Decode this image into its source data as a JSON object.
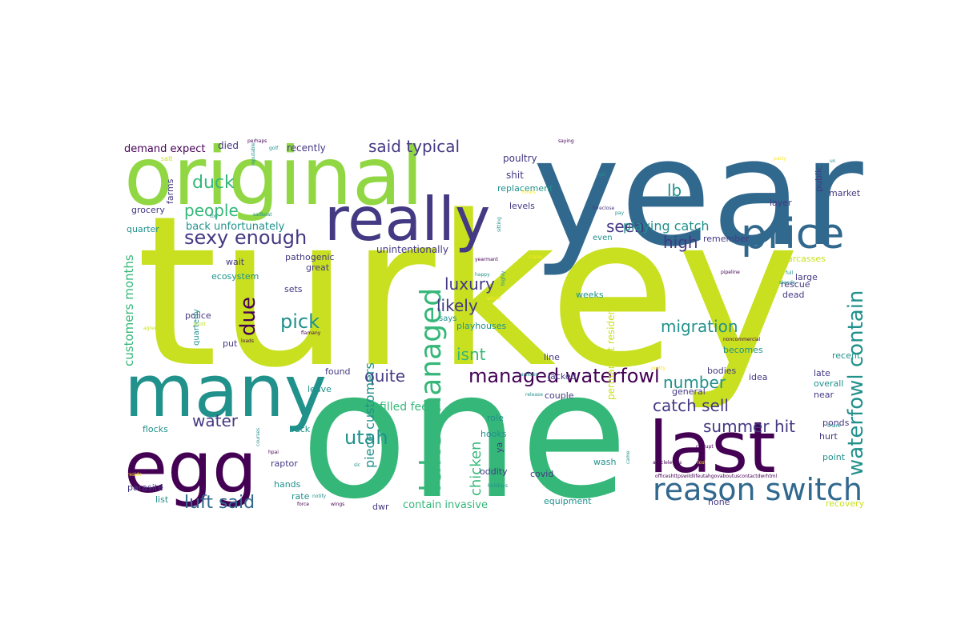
{
  "wordcloud": {
    "colors": {
      "purple": "#440154",
      "indigo": "#443983",
      "blue": "#31688e",
      "teal": "#21918c",
      "green": "#35b779",
      "lime": "#90d743",
      "yellow": "#c8e020",
      "yellow_light": "#fde725"
    },
    "words": [
      {
        "text": "turkey",
        "color": "yellow",
        "weight": 1.0
      },
      {
        "text": "one",
        "color": "green",
        "weight": 0.88
      },
      {
        "text": "year",
        "color": "blue",
        "weight": 0.76
      },
      {
        "text": "original",
        "color": "lime",
        "weight": 0.52
      },
      {
        "text": "many",
        "color": "teal",
        "weight": 0.5
      },
      {
        "text": "egg",
        "color": "purple",
        "weight": 0.48
      },
      {
        "text": "last",
        "color": "purple",
        "weight": 0.46
      },
      {
        "text": "really",
        "color": "indigo",
        "weight": 0.4
      },
      {
        "text": "price",
        "color": "blue",
        "weight": 0.3
      },
      {
        "text": "reason switch",
        "color": "blue",
        "weight": 0.26
      },
      {
        "text": "lake managed",
        "color": "green",
        "weight": 0.22
      },
      {
        "text": "managed waterfowl",
        "color": "purple",
        "weight": 0.2
      },
      {
        "text": "waterfowl contain",
        "color": "teal",
        "weight": 0.2
      },
      {
        "text": "sexy enough",
        "color": "indigo",
        "weight": 0.19
      },
      {
        "text": "duck",
        "color": "green",
        "weight": 0.18
      },
      {
        "text": "due",
        "color": "purple",
        "weight": 0.18
      },
      {
        "text": "said typical",
        "color": "indigo",
        "weight": 0.17
      },
      {
        "text": "luft said",
        "color": "blue",
        "weight": 0.17
      },
      {
        "text": "migration",
        "color": "teal",
        "weight": 0.16
      },
      {
        "text": "utah",
        "color": "teal",
        "weight": 0.16
      },
      {
        "text": "pick",
        "color": "teal",
        "weight": 0.16
      },
      {
        "text": "people",
        "color": "green",
        "weight": 0.15
      },
      {
        "text": "luxury",
        "color": "indigo",
        "weight": 0.15
      },
      {
        "text": "likely",
        "color": "indigo",
        "weight": 0.15
      },
      {
        "text": "isnt",
        "color": "green",
        "weight": 0.15
      },
      {
        "text": "quite",
        "color": "indigo",
        "weight": 0.15
      },
      {
        "text": "number",
        "color": "teal",
        "weight": 0.15
      },
      {
        "text": "catch sell",
        "color": "indigo",
        "weight": 0.15
      },
      {
        "text": "summer hit",
        "color": "indigo",
        "weight": 0.15
      },
      {
        "text": "water",
        "color": "indigo",
        "weight": 0.15
      },
      {
        "text": "seen",
        "color": "indigo",
        "weight": 0.14
      },
      {
        "text": "high",
        "color": "indigo",
        "weight": 0.14
      },
      {
        "text": "lb",
        "color": "teal",
        "weight": 0.14
      },
      {
        "text": "playing catch",
        "color": "teal",
        "weight": 0.13
      },
      {
        "text": "piece customers",
        "color": "teal",
        "weight": 0.13
      },
      {
        "text": "chicken",
        "color": "green",
        "weight": 0.13
      },
      {
        "text": "customers months",
        "color": "green",
        "weight": 0.12
      },
      {
        "text": "refilled feel",
        "color": "green",
        "weight": 0.11
      },
      {
        "text": "back unfortunately",
        "color": "teal",
        "weight": 0.11
      },
      {
        "text": "demand expect",
        "color": "purple",
        "weight": 0.1
      },
      {
        "text": "contain invasive",
        "color": "green",
        "weight": 0.1
      },
      {
        "text": "permanent resident",
        "color": "yellow",
        "weight": 0.09
      },
      {
        "text": "unintentionally",
        "color": "indigo",
        "weight": 0.09
      },
      {
        "text": "recently",
        "color": "indigo",
        "weight": 0.09
      },
      {
        "text": "died",
        "color": "indigo",
        "weight": 0.09
      },
      {
        "text": "poultry",
        "color": "indigo",
        "weight": 0.09
      },
      {
        "text": "shit",
        "color": "indigo",
        "weight": 0.09
      },
      {
        "text": "replacement",
        "color": "teal",
        "weight": 0.09
      },
      {
        "text": "levels",
        "color": "indigo",
        "weight": 0.08
      },
      {
        "text": "grocery",
        "color": "indigo",
        "weight": 0.08
      },
      {
        "text": "farms",
        "color": "indigo",
        "weight": 0.08
      },
      {
        "text": "quarter",
        "color": "teal",
        "weight": 0.08
      },
      {
        "text": "wait",
        "color": "indigo",
        "weight": 0.08
      },
      {
        "text": "pathogenic",
        "color": "indigo",
        "weight": 0.08
      },
      {
        "text": "great",
        "color": "indigo",
        "weight": 0.08
      },
      {
        "text": "ecosystem",
        "color": "teal",
        "weight": 0.08
      },
      {
        "text": "sets",
        "color": "indigo",
        "weight": 0.08
      },
      {
        "text": "police",
        "color": "indigo",
        "weight": 0.08
      },
      {
        "text": "quarterly",
        "color": "teal",
        "weight": 0.08
      },
      {
        "text": "put",
        "color": "indigo",
        "weight": 0.08
      },
      {
        "text": "found",
        "color": "indigo",
        "weight": 0.08
      },
      {
        "text": "leave",
        "color": "teal",
        "weight": 0.08
      },
      {
        "text": "line",
        "color": "indigo",
        "weight": 0.08
      },
      {
        "text": "jacked",
        "color": "indigo",
        "weight": 0.08
      },
      {
        "text": "couple",
        "color": "indigo",
        "weight": 0.08
      },
      {
        "text": "role",
        "color": "teal",
        "weight": 0.08
      },
      {
        "text": "hooks",
        "color": "teal",
        "weight": 0.08
      },
      {
        "text": "oddity",
        "color": "indigo",
        "weight": 0.08
      },
      {
        "text": "covid",
        "color": "indigo",
        "weight": 0.08
      },
      {
        "text": "ya",
        "color": "indigo",
        "weight": 0.08
      },
      {
        "text": "wash",
        "color": "teal",
        "weight": 0.08
      },
      {
        "text": "equipment",
        "color": "teal",
        "weight": 0.08
      },
      {
        "text": "dwr",
        "color": "indigo",
        "weight": 0.08
      },
      {
        "text": "flocks",
        "color": "teal",
        "weight": 0.08
      },
      {
        "text": "back",
        "color": "teal",
        "weight": 0.08
      },
      {
        "text": "raptor",
        "color": "indigo",
        "weight": 0.08
      },
      {
        "text": "parasite",
        "color": "indigo",
        "weight": 0.08
      },
      {
        "text": "hands",
        "color": "teal",
        "weight": 0.08
      },
      {
        "text": "list",
        "color": "teal",
        "weight": 0.08
      },
      {
        "text": "rate",
        "color": "teal",
        "weight": 0.08
      },
      {
        "text": "says",
        "color": "teal",
        "weight": 0.07
      },
      {
        "text": "playhouses",
        "color": "teal",
        "weight": 0.08
      },
      {
        "text": "weeks",
        "color": "teal",
        "weight": 0.08
      },
      {
        "text": "even",
        "color": "teal",
        "weight": 0.07
      },
      {
        "text": "layer",
        "color": "indigo",
        "weight": 0.08
      },
      {
        "text": "public",
        "color": "indigo",
        "weight": 0.07
      },
      {
        "text": "market",
        "color": "indigo",
        "weight": 0.08
      },
      {
        "text": "remember",
        "color": "indigo",
        "weight": 0.08
      },
      {
        "text": "carcasses",
        "color": "yellow",
        "weight": 0.08
      },
      {
        "text": "large",
        "color": "indigo",
        "weight": 0.08
      },
      {
        "text": "rescue",
        "color": "indigo",
        "weight": 0.08
      },
      {
        "text": "dead",
        "color": "indigo",
        "weight": 0.08
      },
      {
        "text": "becomes",
        "color": "teal",
        "weight": 0.08
      },
      {
        "text": "recent",
        "color": "teal",
        "weight": 0.08
      },
      {
        "text": "bodies",
        "color": "indigo",
        "weight": 0.08
      },
      {
        "text": "idea",
        "color": "indigo",
        "weight": 0.08
      },
      {
        "text": "late",
        "color": "indigo",
        "weight": 0.08
      },
      {
        "text": "overall",
        "color": "teal",
        "weight": 0.08
      },
      {
        "text": "general",
        "color": "indigo",
        "weight": 0.08
      },
      {
        "text": "near",
        "color": "indigo",
        "weight": 0.08
      },
      {
        "text": "ponds",
        "color": "indigo",
        "weight": 0.08
      },
      {
        "text": "hurt",
        "color": "indigo",
        "weight": 0.08
      },
      {
        "text": "point",
        "color": "teal",
        "weight": 0.08
      },
      {
        "text": "none",
        "color": "indigo",
        "weight": 0.07
      },
      {
        "text": "recovery",
        "color": "yellow",
        "weight": 0.08
      },
      {
        "text": "perhaps",
        "color": "purple",
        "weight": 0.04
      },
      {
        "text": "golf",
        "color": "teal",
        "weight": 0.04
      },
      {
        "text": "reputable",
        "color": "teal",
        "weight": 0.04
      },
      {
        "text": "saying",
        "color": "purple",
        "weight": 0.04
      },
      {
        "text": "gsl",
        "color": "teal",
        "weight": 0.04
      },
      {
        "text": "party",
        "color": "yellow_light",
        "weight": 0.04
      },
      {
        "text": "un",
        "color": "teal",
        "weight": 0.04
      },
      {
        "text": "salt",
        "color": "yellow",
        "weight": 0.05
      },
      {
        "text": "sailboat",
        "color": "teal",
        "weight": 0.04
      },
      {
        "text": "ton",
        "color": "teal",
        "weight": 0.04
      },
      {
        "text": "hours",
        "color": "yellow_light",
        "weight": 0.04
      },
      {
        "text": "foreclose",
        "color": "indigo",
        "weight": 0.04
      },
      {
        "text": "pay",
        "color": "teal",
        "weight": 0.04
      },
      {
        "text": "sitting",
        "color": "teal",
        "weight": 0.04
      },
      {
        "text": "yearmant",
        "color": "purple",
        "weight": 0.04
      },
      {
        "text": "highly",
        "color": "teal",
        "weight": 0.04
      },
      {
        "text": "happy",
        "color": "teal",
        "weight": 0.04
      },
      {
        "text": "pipeline",
        "color": "purple",
        "weight": 0.04
      },
      {
        "text": "full",
        "color": "teal",
        "weight": 0.04
      },
      {
        "text": "stands",
        "color": "teal",
        "weight": 0.04
      },
      {
        "text": "flamany",
        "color": "purple",
        "weight": 0.04
      },
      {
        "text": "loads",
        "color": "purple",
        "weight": 0.04
      },
      {
        "text": "agree",
        "color": "yellow",
        "weight": 0.04
      },
      {
        "text": "scott",
        "color": "yellow",
        "weight": 0.04
      },
      {
        "text": "whole",
        "color": "yellow_light",
        "weight": 0.04
      },
      {
        "text": "noncommercial",
        "color": "purple",
        "weight": 0.04
      },
      {
        "text": "articles",
        "color": "teal",
        "weight": 0.04
      },
      {
        "text": "pretty",
        "color": "yellow_light",
        "weight": 0.04
      },
      {
        "text": "release",
        "color": "teal",
        "weight": 0.04
      },
      {
        "text": "courses",
        "color": "teal",
        "weight": 0.04
      },
      {
        "text": "hpai",
        "color": "purple",
        "weight": 0.04
      },
      {
        "text": "slc",
        "color": "teal",
        "weight": 0.04
      },
      {
        "text": "holidays",
        "color": "teal",
        "weight": 0.04
      },
      {
        "text": "notify",
        "color": "teal",
        "weight": 0.04
      },
      {
        "text": "wings",
        "color": "purple",
        "weight": 0.04
      },
      {
        "text": "force",
        "color": "purple",
        "weight": 0.04
      },
      {
        "text": "corrupt",
        "color": "purple",
        "weight": 0.04
      },
      {
        "text": "share",
        "color": "teal",
        "weight": 0.04
      },
      {
        "text": "lost",
        "color": "yellow_light",
        "weight": 0.04
      },
      {
        "text": "articlelevels",
        "color": "purple",
        "weight": 0.04
      },
      {
        "text": "came",
        "color": "teal",
        "weight": 0.04
      },
      {
        "text": "officeshttpswildlifeutahgovaboutuscontactdwrhtml",
        "color": "purple",
        "weight": 0.04
      },
      {
        "text": "reside",
        "color": "yellow_light",
        "weight": 0.04
      },
      {
        "text": "crane",
        "color": "yellow_light",
        "weight": 0.04
      }
    ]
  }
}
